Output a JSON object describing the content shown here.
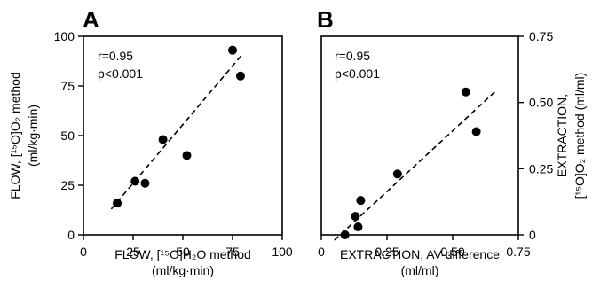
{
  "chart_data": [
    {
      "type": "scatter",
      "panel_label": "A",
      "xlabel": [
        "FLOW, [¹⁵O]H₂O method",
        "(ml/kg·min)"
      ],
      "ylabel": [
        "FLOW, [¹⁵O]O₂ method",
        "(ml/kg·min)"
      ],
      "xlim": [
        0,
        100
      ],
      "ylim": [
        0,
        100
      ],
      "x_ticks": [
        0,
        25,
        50,
        75,
        100
      ],
      "y_ticks": [
        0,
        25,
        50,
        75,
        100
      ],
      "x_tick_labels": [
        "0",
        "25",
        "50",
        "75",
        "100"
      ],
      "y_tick_labels": [
        "0",
        "25",
        "50",
        "75",
        "100"
      ],
      "y_axis_side": "left",
      "annotations": [
        "r=0.95",
        "p<0.001"
      ],
      "grid": false,
      "points": [
        {
          "x": 17,
          "y": 16
        },
        {
          "x": 26,
          "y": 27
        },
        {
          "x": 31,
          "y": 26
        },
        {
          "x": 40,
          "y": 48
        },
        {
          "x": 52,
          "y": 40
        },
        {
          "x": 75,
          "y": 93
        },
        {
          "x": 79,
          "y": 80
        }
      ],
      "fit_line": {
        "x": [
          14,
          80
        ],
        "y": [
          13,
          91
        ],
        "style": "dashed"
      }
    },
    {
      "type": "scatter",
      "panel_label": "B",
      "xlabel": [
        "EXTRACTION, AV-difference",
        "(ml/ml)"
      ],
      "ylabel": [
        "EXTRACTION,",
        "[¹⁵O]O₂ method (ml/ml)"
      ],
      "xlim": [
        0,
        0.75
      ],
      "ylim": [
        0,
        0.75
      ],
      "x_ticks": [
        0,
        0.25,
        0.5,
        0.75
      ],
      "y_ticks": [
        0,
        0.25,
        0.5,
        0.75
      ],
      "x_tick_labels": [
        "0",
        "0.25",
        "0.50",
        "0.75"
      ],
      "y_tick_labels": [
        "0",
        "0.25",
        "0.50",
        "0.75"
      ],
      "y_axis_side": "right",
      "annotations": [
        "r=0.95",
        "p<0.001"
      ],
      "grid": false,
      "points": [
        {
          "x": 0.09,
          "y": 0.0
        },
        {
          "x": 0.13,
          "y": 0.07
        },
        {
          "x": 0.14,
          "y": 0.03
        },
        {
          "x": 0.15,
          "y": 0.13
        },
        {
          "x": 0.29,
          "y": 0.23
        },
        {
          "x": 0.55,
          "y": 0.54
        },
        {
          "x": 0.59,
          "y": 0.39
        }
      ],
      "fit_line": {
        "x": [
          0.05,
          0.66
        ],
        "y": [
          -0.02,
          0.54
        ],
        "style": "dashed"
      }
    }
  ]
}
